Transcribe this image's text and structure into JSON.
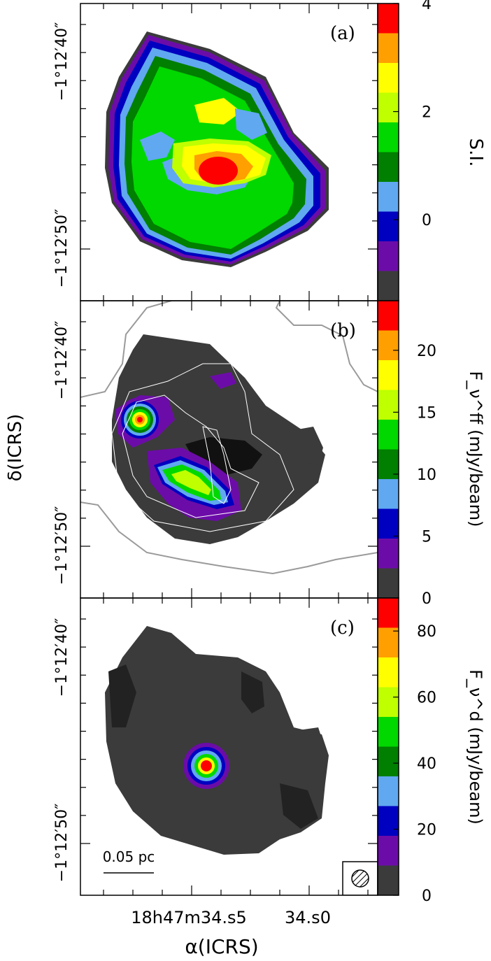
{
  "chart_data": [
    {
      "type": "heatmap",
      "panel_label": "(a)",
      "colorbar": {
        "label": "S.I.",
        "ticks": [
          "4",
          "2",
          "0"
        ],
        "range": [
          -1.5,
          4
        ],
        "colors": [
          "#ff0000",
          "#ff9f00",
          "#ffff00",
          "#bfff00",
          "#00d800",
          "#007f00",
          "#60a8f0",
          "#0000c0",
          "#6c0ca8",
          "#3b3b3b"
        ]
      },
      "yticks": [
        "−1°12′40″",
        "−1°12′50″"
      ],
      "features": [
        "central peak ~3.5",
        "ring of green/yellow 1-2.5",
        "edges blue/purple ~0"
      ]
    },
    {
      "type": "heatmap",
      "panel_label": "(b)",
      "colorbar": {
        "label": "F_ν^ff (mJy/beam)",
        "ticks": [
          "20",
          "15",
          "10",
          "5",
          "0"
        ],
        "range": [
          0,
          24
        ],
        "colors": [
          "#ff0000",
          "#ff9f00",
          "#ffff00",
          "#bfff00",
          "#00d800",
          "#007f00",
          "#60a8f0",
          "#0000c0",
          "#6c0ca8",
          "#3b3b3b"
        ]
      },
      "yticks": [
        "−1°12′40″",
        "−1°12′50″"
      ],
      "features": [
        "compact source peak ~22",
        "arc ~14 south-west",
        "white and gray contours overlay"
      ]
    },
    {
      "type": "heatmap",
      "panel_label": "(c)",
      "colorbar": {
        "label": "F_ν^d (mJy/beam)",
        "ticks": [
          "80",
          "60",
          "40",
          "20",
          "0"
        ],
        "range": [
          0,
          90
        ],
        "colors": [
          "#ff0000",
          "#ff9f00",
          "#ffff00",
          "#bfff00",
          "#00d800",
          "#007f00",
          "#60a8f0",
          "#0000c0",
          "#6c0ca8",
          "#3b3b3b"
        ]
      },
      "yticks": [
        "−1°12′40″",
        "−1°12′50″"
      ],
      "scalebar": "0.05 pc",
      "features": [
        "central compact dust peak ~88",
        "extended envelope ~5"
      ]
    }
  ],
  "axes": {
    "xlabel": "α(ICRS)",
    "ylabel": "δ(ICRS)",
    "xtick_1": "18h47m34.s5",
    "xtick_2": "34.s0"
  }
}
